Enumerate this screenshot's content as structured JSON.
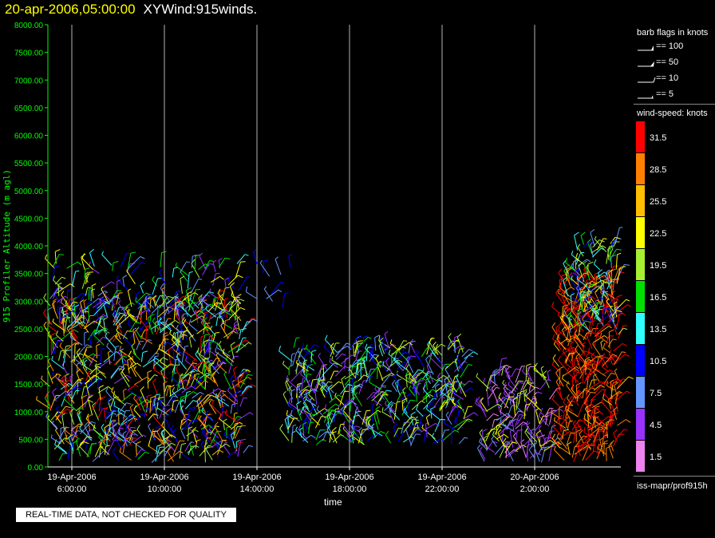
{
  "header": {
    "date": "20-apr-2006,05:00:00",
    "product": "XYWind:915winds."
  },
  "chart_data": {
    "type": "scatter",
    "title": "XYWind:915winds.",
    "xlabel": "time",
    "ylabel": "915 Profiler Altitude (m agl)",
    "ylim": [
      0,
      8000
    ],
    "y_ticks": [
      "0.00",
      "500.00",
      "1000.00",
      "1500.00",
      "2000.00",
      "2500.00",
      "3000.00",
      "3500.00",
      "4000.00",
      "4500.00",
      "5000.00",
      "5500.00",
      "6000.00",
      "6500.00",
      "7000.00",
      "7500.00",
      "8000.00"
    ],
    "x_ticks": [
      {
        "line1": "19-Apr-2006",
        "line2": "6:00:00"
      },
      {
        "line1": "19-Apr-2006",
        "line2": "10:00:00"
      },
      {
        "line1": "19-Apr-2006",
        "line2": "14:00:00"
      },
      {
        "line1": "19-Apr-2006",
        "line2": "18:00:00"
      },
      {
        "line1": "19-Apr-2006",
        "line2": "22:00:00"
      },
      {
        "line1": "20-Apr-2006",
        "line2": "2:00:00"
      }
    ],
    "grid": "vertical",
    "legend_placement": "right",
    "legend_title": "wind-speed: knots",
    "legend_levels": [
      "31.5",
      "28.5",
      "25.5",
      "22.5",
      "19.5",
      "16.5",
      "13.5",
      "10.5",
      "7.5",
      "4.5",
      "1.5"
    ],
    "legend_colors": [
      "#ff0000",
      "#ff8000",
      "#ffbf00",
      "#ffff00",
      "#a6f032",
      "#00e000",
      "#30ffff",
      "#0000ff",
      "#6496ff",
      "#9932ff",
      "#ee82ee"
    ]
  },
  "barb_legend": {
    "title": "barb flags in knots",
    "items": [
      "== 100",
      "== 50",
      "== 10",
      "== 5"
    ]
  },
  "footer": {
    "quality_note": "REAL-TIME DATA, NOT CHECKED FOR QUALITY",
    "source": "iss-mapr/prof915h"
  },
  "colors": {
    "axis": "#00ff00",
    "grid": "#b4b4b4",
    "title_date": "#ffff00"
  }
}
